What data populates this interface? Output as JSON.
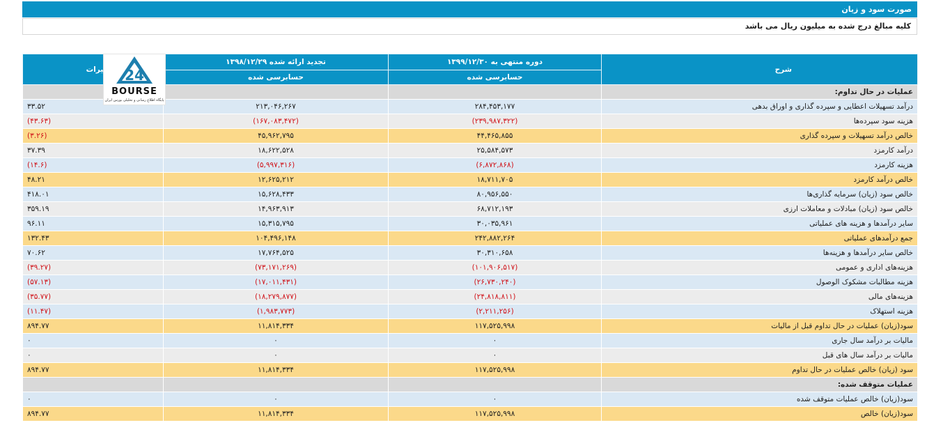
{
  "header": {
    "title": "صورت سود و زیان",
    "note": "کلیه مبالغ درج شده به میلیون ریال می باشد"
  },
  "columns": {
    "description": "شرح",
    "current_period": "دوره منتهی به ۱۳۹۹/۱۲/۳۰",
    "current_status": "حسابرسی شده",
    "restated_period": "تجدید ارائه شده ۱۳۹۸/۱۲/۲۹",
    "restated_status": "حسابرسی شده",
    "change_pct": "درصد تغییرات"
  },
  "logo": {
    "text": "BOURSE",
    "mark": "24",
    "caption": "پایگاه اطلاع رسانی و تحلیلی بورس ایران"
  },
  "rows": [
    {
      "type": "section",
      "desc": "عملیات در حال تداوم:",
      "cur": "",
      "prev": "",
      "pct": ""
    },
    {
      "type": "blue",
      "desc": "درآمد تسهیلات اعطایی و سپرده گذاری و اوراق بدهی",
      "cur": "۲۸۴,۴۵۳,۱۷۷",
      "prev": "۲۱۳,۰۴۶,۲۶۷",
      "pct": "۳۳.۵۲"
    },
    {
      "type": "grey",
      "desc": "هزینه سود سپرده‌ها",
      "cur": "(۲۳۹,۹۸۷,۳۲۲)",
      "prev": "(۱۶۷,۰۸۳,۴۷۲)",
      "pct": "(۴۳.۶۳)"
    },
    {
      "type": "yellow",
      "desc": "خالص درآمد تسهیلات و سپرده گذاری",
      "cur": "۴۴,۴۶۵,۸۵۵",
      "prev": "۴۵,۹۶۲,۷۹۵",
      "pct": "(۳.۲۶)"
    },
    {
      "type": "grey",
      "desc": "درآمد کارمزد",
      "cur": "۲۵,۵۸۴,۵۷۳",
      "prev": "۱۸,۶۲۲,۵۲۸",
      "pct": "۳۷.۳۹"
    },
    {
      "type": "blue",
      "desc": "هزینه کارمزد",
      "cur": "(۶,۸۷۲,۸۶۸)",
      "prev": "(۵,۹۹۷,۳۱۶)",
      "pct": "(۱۴.۶)"
    },
    {
      "type": "yellow",
      "desc": "خالص درآمد کارمزد",
      "cur": "۱۸,۷۱۱,۷۰۵",
      "prev": "۱۲,۶۲۵,۲۱۲",
      "pct": "۴۸.۲۱"
    },
    {
      "type": "blue",
      "desc": "خالص سود (زیان) سرمایه گذاری‌ها",
      "cur": "۸۰,۹۵۶,۵۵۰",
      "prev": "۱۵,۶۲۸,۴۳۳",
      "pct": "۴۱۸.۰۱"
    },
    {
      "type": "grey",
      "desc": "خالص سود (زیان) مبادلات و معاملات ارزی",
      "cur": "۶۸,۷۱۲,۱۹۳",
      "prev": "۱۴,۹۶۳,۹۱۳",
      "pct": "۳۵۹.۱۹"
    },
    {
      "type": "blue",
      "desc": "سایر درآمدها و هزینه های عملیاتی",
      "cur": "۳۰,۰۳۵,۹۶۱",
      "prev": "۱۵,۳۱۵,۷۹۵",
      "pct": "۹۶.۱۱"
    },
    {
      "type": "yellow",
      "desc": "جمع درآمدهای عملیاتی",
      "cur": "۲۴۲,۸۸۲,۲۶۴",
      "prev": "۱۰۴,۴۹۶,۱۴۸",
      "pct": "۱۳۲.۴۳"
    },
    {
      "type": "blue",
      "desc": "خالص سایر درآمدها و هزینه‌ها",
      "cur": "۳۰,۳۱۰,۶۵۸",
      "prev": "۱۷,۷۶۴,۵۲۵",
      "pct": "۷۰.۶۲"
    },
    {
      "type": "grey",
      "desc": "هزینه‌های اداری و عمومی",
      "cur": "(۱۰۱,۹۰۶,۵۱۷)",
      "prev": "(۷۳,۱۷۱,۲۶۹)",
      "pct": "(۳۹.۲۷)"
    },
    {
      "type": "blue",
      "desc": "هزینه مطالبات مشکوک الوصول",
      "cur": "(۲۶,۷۳۰,۲۴۰)",
      "prev": "(۱۷,۰۱۱,۴۳۱)",
      "pct": "(۵۷.۱۳)"
    },
    {
      "type": "grey",
      "desc": "هزینه‌های مالی",
      "cur": "(۲۴,۸۱۸,۸۱۱)",
      "prev": "(۱۸,۲۷۹,۸۷۷)",
      "pct": "(۳۵.۷۷)"
    },
    {
      "type": "blue",
      "desc": "هزینه استهلاک",
      "cur": "(۲,۲۱۱,۲۵۶)",
      "prev": "(۱,۹۸۳,۷۷۳)",
      "pct": "(۱۱.۴۷)"
    },
    {
      "type": "yellow",
      "desc": "سود(زیان) عملیات در حال تداوم قبل از مالیات",
      "cur": "۱۱۷,۵۲۵,۹۹۸",
      "prev": "۱۱,۸۱۴,۳۳۴",
      "pct": "۸۹۴.۷۷"
    },
    {
      "type": "blue",
      "desc": "مالیات بر درآمد سال جاری",
      "cur": "۰",
      "prev": "۰",
      "pct": "۰"
    },
    {
      "type": "grey",
      "desc": "مالیات بر درآمد سال های قبل",
      "cur": "۰",
      "prev": "۰",
      "pct": "۰"
    },
    {
      "type": "yellow",
      "desc": "سود (زیان) خالص عملیات در حال تداوم",
      "cur": "۱۱۷,۵۲۵,۹۹۸",
      "prev": "۱۱,۸۱۴,۳۳۴",
      "pct": "۸۹۴.۷۷"
    },
    {
      "type": "section",
      "desc": "عملیات متوقف شده:",
      "cur": "",
      "prev": "",
      "pct": ""
    },
    {
      "type": "blue",
      "desc": "سود(زیان) خالص عملیات متوقف شده",
      "cur": "۰",
      "prev": "۰",
      "pct": "۰"
    },
    {
      "type": "yellow",
      "desc": "سود(زیان) خالص",
      "cur": "۱۱۷,۵۲۵,۹۹۸",
      "prev": "۱۱,۸۱۴,۳۳۴",
      "pct": "۸۹۴.۷۷"
    }
  ],
  "colors": {
    "header_bg": "#0a93c6",
    "section_bg": "#d9d9d9",
    "blue_row": "#dae8f4",
    "grey_row": "#ececec",
    "yellow_row": "#fbd98a",
    "negative_text": "#d0141a"
  }
}
